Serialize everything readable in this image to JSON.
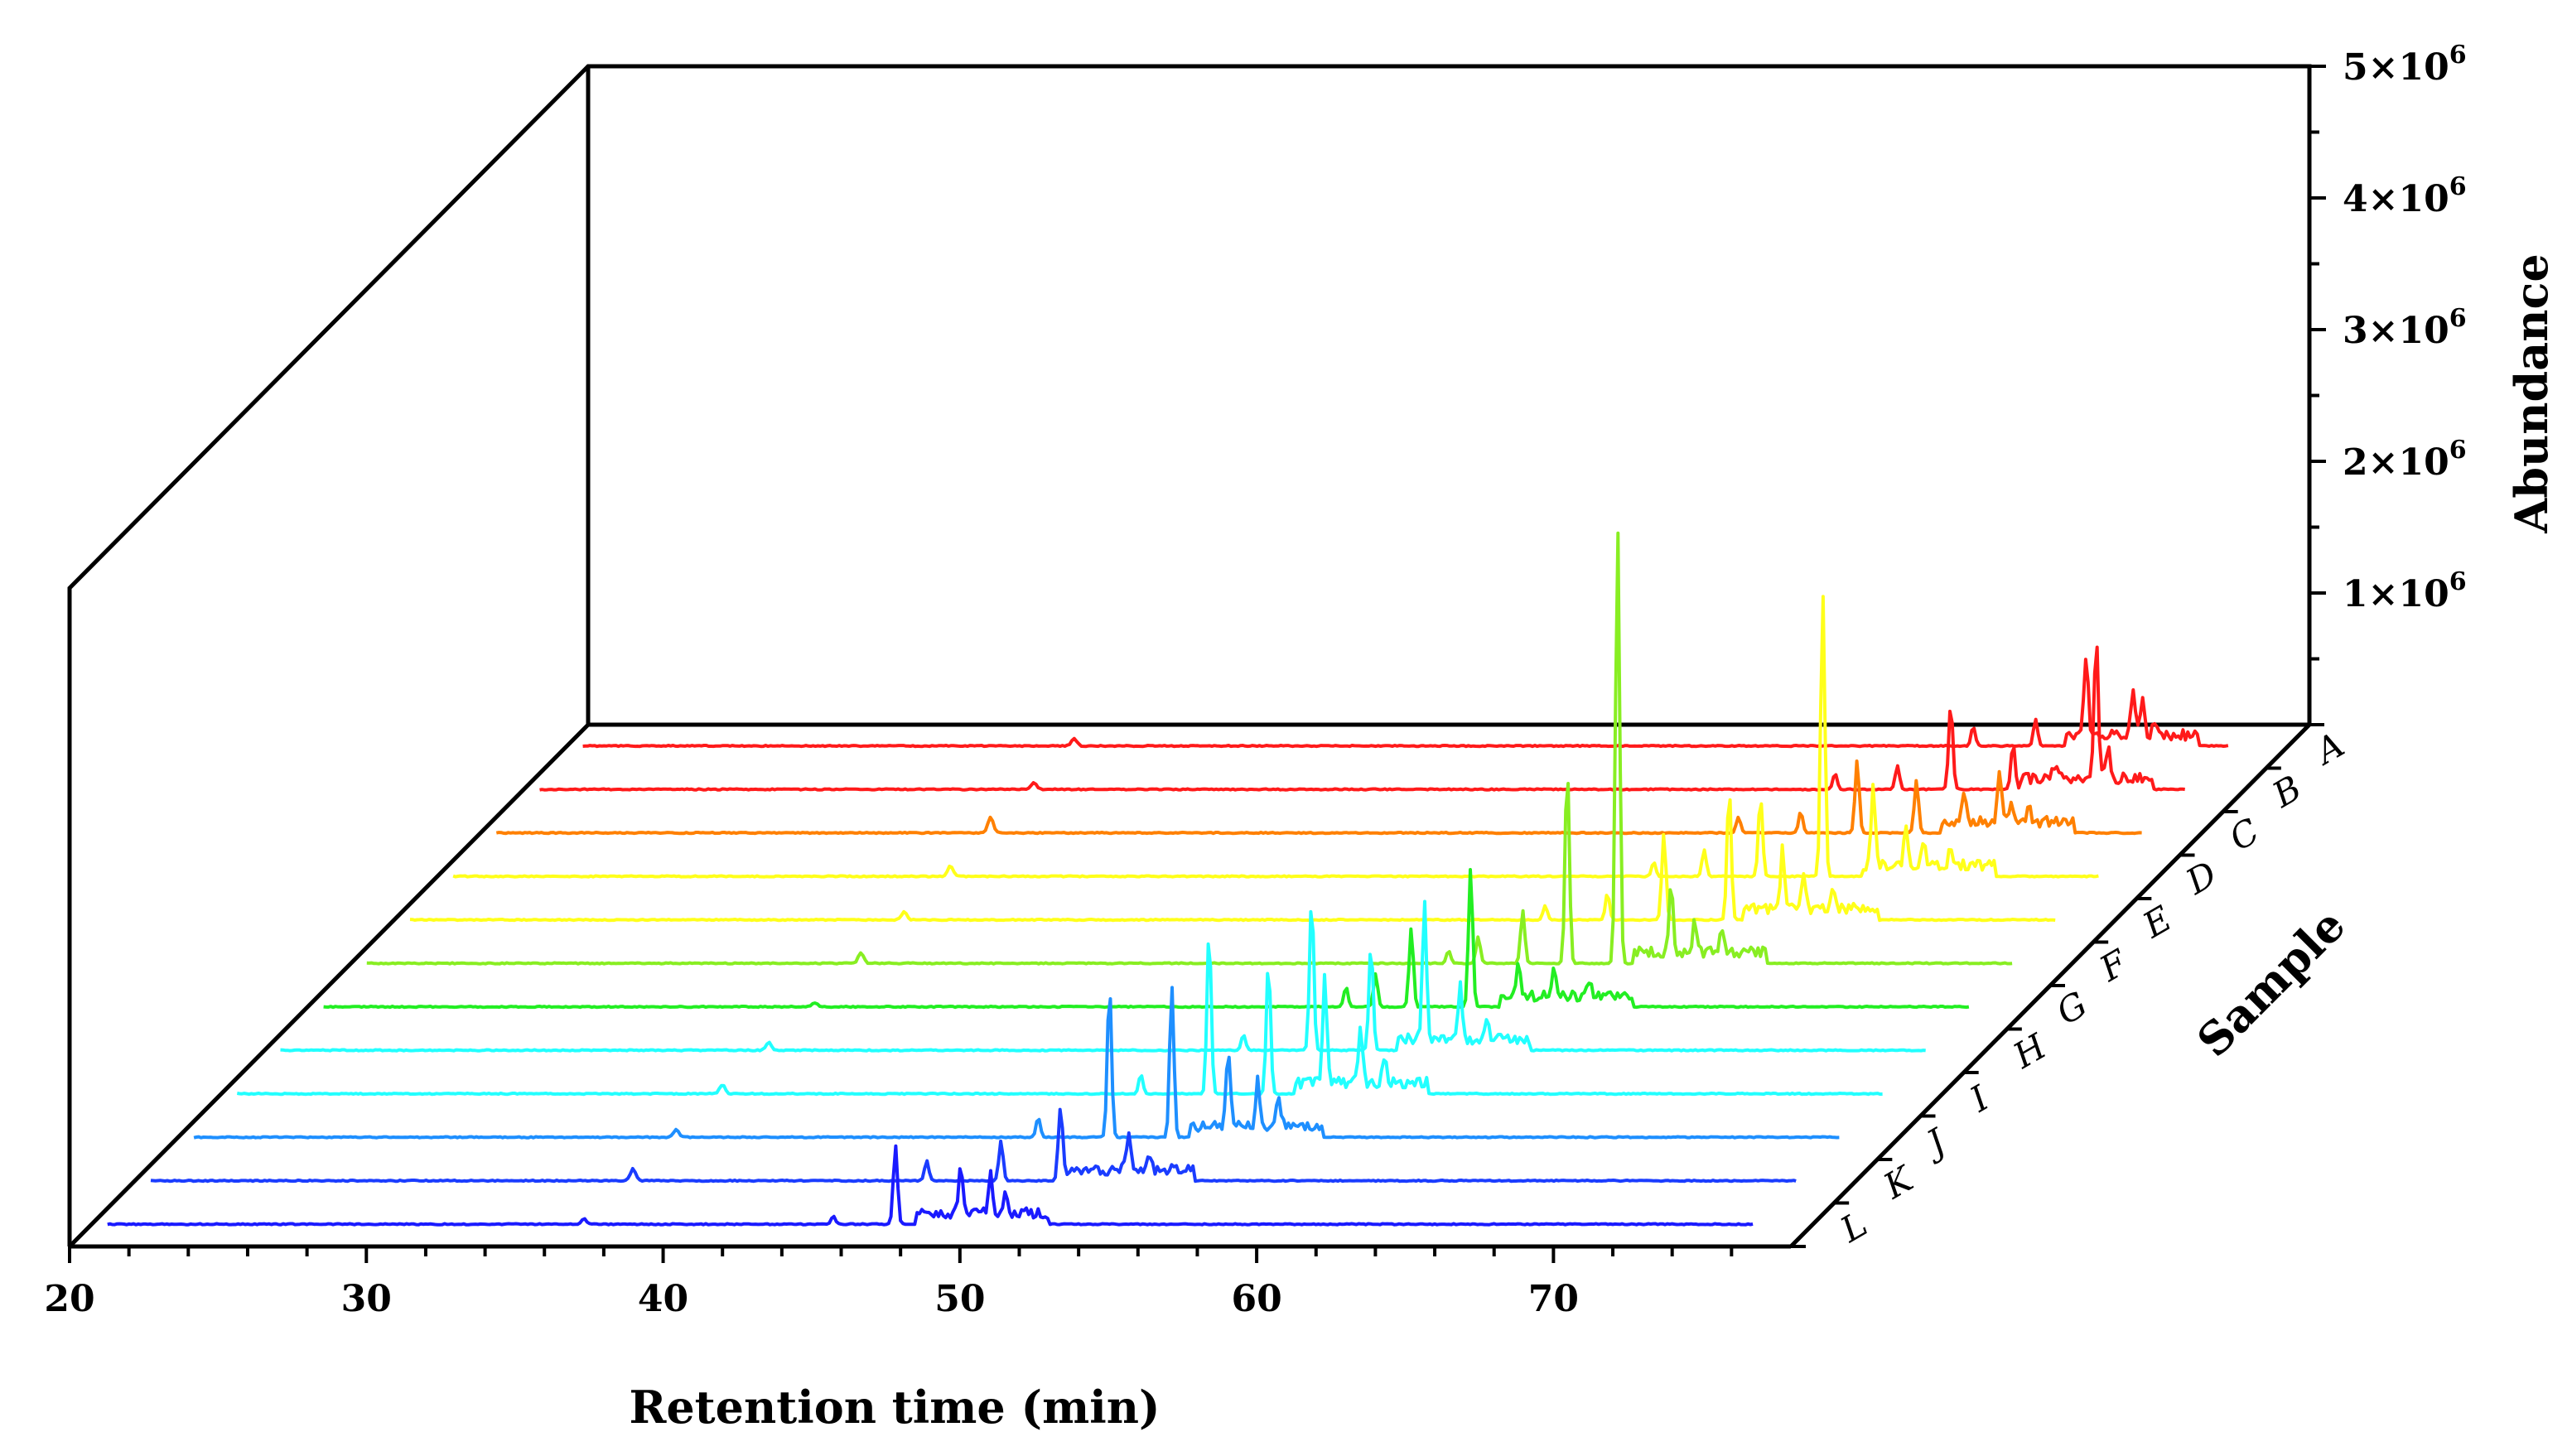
{
  "chart_data": {
    "type": "line",
    "title": "",
    "xlabel": "Retention time (min)",
    "ylabel": "Abundance",
    "zlabel": "Sample",
    "xlim": [
      20,
      78
    ],
    "ylim": [
      0,
      5000000
    ],
    "x_ticks": [
      20,
      30,
      40,
      50,
      60,
      70
    ],
    "y_ticks": [
      {
        "base": "1×10",
        "exp": "6"
      },
      {
        "base": "2×10",
        "exp": "6"
      },
      {
        "base": "3×10",
        "exp": "6"
      },
      {
        "base": "4×10",
        "exp": "6"
      },
      {
        "base": "5×10",
        "exp": "6"
      }
    ],
    "samples": [
      "A",
      "B",
      "C",
      "D",
      "E",
      "F",
      "G",
      "H",
      "I",
      "J",
      "K",
      "L"
    ],
    "series": [
      {
        "name": "A",
        "color": "#ff1a1a",
        "peaks": [
          [
            37.1,
            60000
          ],
          [
            67.4,
            150000
          ],
          [
            69.5,
            200000
          ],
          [
            71.2,
            600000
          ],
          [
            72.8,
            350000
          ],
          [
            73.1,
            280000
          ],
          [
            73.5,
            120000
          ]
        ]
      },
      {
        "name": "B",
        "color": "#ff1a1a",
        "peaks": [
          [
            37.2,
            50000
          ],
          [
            64.2,
            120000
          ],
          [
            66.3,
            180000
          ],
          [
            68.1,
            650000
          ],
          [
            70.2,
            350000
          ],
          [
            71.6,
            100000
          ],
          [
            73.0,
            1050000
          ],
          [
            73.4,
            250000
          ]
        ]
      },
      {
        "name": "C",
        "color": "#ff8000",
        "peaks": [
          [
            37.2,
            120000
          ],
          [
            62.4,
            120000
          ],
          [
            64.5,
            160000
          ],
          [
            66.4,
            550000
          ],
          [
            68.4,
            400000
          ],
          [
            70.0,
            200000
          ],
          [
            71.2,
            400000
          ],
          [
            71.6,
            150000
          ],
          [
            72.2,
            100000
          ]
        ]
      },
      {
        "name": "D",
        "color": "#ffff1a",
        "peaks": [
          [
            37.3,
            80000
          ],
          [
            61.0,
            110000
          ],
          [
            62.7,
            200000
          ],
          [
            64.6,
            600000
          ],
          [
            66.7,
            2150000
          ],
          [
            68.4,
            600000
          ],
          [
            69.5,
            300000
          ],
          [
            70.1,
            180000
          ],
          [
            71.0,
            120000
          ]
        ]
      },
      {
        "name": "E",
        "color": "#ffff1a",
        "peaks": [
          [
            37.2,
            60000
          ],
          [
            58.8,
            110000
          ],
          [
            60.9,
            200000
          ],
          [
            62.8,
            650000
          ],
          [
            65.0,
            1000000
          ],
          [
            66.8,
            450000
          ],
          [
            67.5,
            250000
          ],
          [
            68.5,
            150000
          ]
        ]
      },
      {
        "name": "F",
        "color": "#88ee22",
        "peaks": [
          [
            37.2,
            80000
          ],
          [
            57.0,
            100000
          ],
          [
            58.0,
            200000
          ],
          [
            59.5,
            400000
          ],
          [
            61.0,
            1500000
          ],
          [
            62.7,
            3300000
          ],
          [
            64.5,
            500000
          ],
          [
            65.3,
            250000
          ],
          [
            66.2,
            150000
          ]
        ]
      },
      {
        "name": "G",
        "color": "#22ee22",
        "peaks": [
          [
            37.1,
            30000
          ],
          [
            55.0,
            150000
          ],
          [
            56.0,
            250000
          ],
          [
            57.2,
            600000
          ],
          [
            59.2,
            1050000
          ],
          [
            60.8,
            250000
          ],
          [
            62.0,
            200000
          ],
          [
            63.2,
            100000
          ]
        ]
      },
      {
        "name": "H",
        "color": "#22ffff",
        "peaks": [
          [
            37.0,
            60000
          ],
          [
            53.0,
            120000
          ],
          [
            55.3,
            1150000
          ],
          [
            57.3,
            800000
          ],
          [
            59.1,
            1050000
          ],
          [
            60.3,
            400000
          ],
          [
            61.2,
            150000
          ]
        ]
      },
      {
        "name": "I",
        "color": "#22ffff",
        "peaks": [
          [
            36.9,
            70000
          ],
          [
            51.0,
            150000
          ],
          [
            53.3,
            1250000
          ],
          [
            55.3,
            1000000
          ],
          [
            57.2,
            800000
          ],
          [
            58.4,
            400000
          ],
          [
            59.2,
            200000
          ]
        ]
      },
      {
        "name": "J",
        "color": "#1e8fff",
        "peaks": [
          [
            36.8,
            60000
          ],
          [
            49.0,
            150000
          ],
          [
            51.4,
            1150000
          ],
          [
            53.5,
            1150000
          ],
          [
            55.4,
            600000
          ],
          [
            56.4,
            350000
          ],
          [
            57.1,
            200000
          ]
        ]
      },
      {
        "name": "K",
        "color": "#1a3cff",
        "peaks": [
          [
            36.8,
            90000
          ],
          [
            46.7,
            150000
          ],
          [
            49.2,
            300000
          ],
          [
            51.2,
            550000
          ],
          [
            53.5,
            250000
          ],
          [
            54.2,
            100000
          ]
        ]
      },
      {
        "name": "L",
        "color": "#1a1aff",
        "peaks": [
          [
            36.6,
            40000
          ],
          [
            45.0,
            60000
          ],
          [
            47.1,
            600000
          ],
          [
            49.3,
            400000
          ],
          [
            50.3,
            300000
          ],
          [
            50.8,
            150000
          ]
        ]
      }
    ]
  }
}
